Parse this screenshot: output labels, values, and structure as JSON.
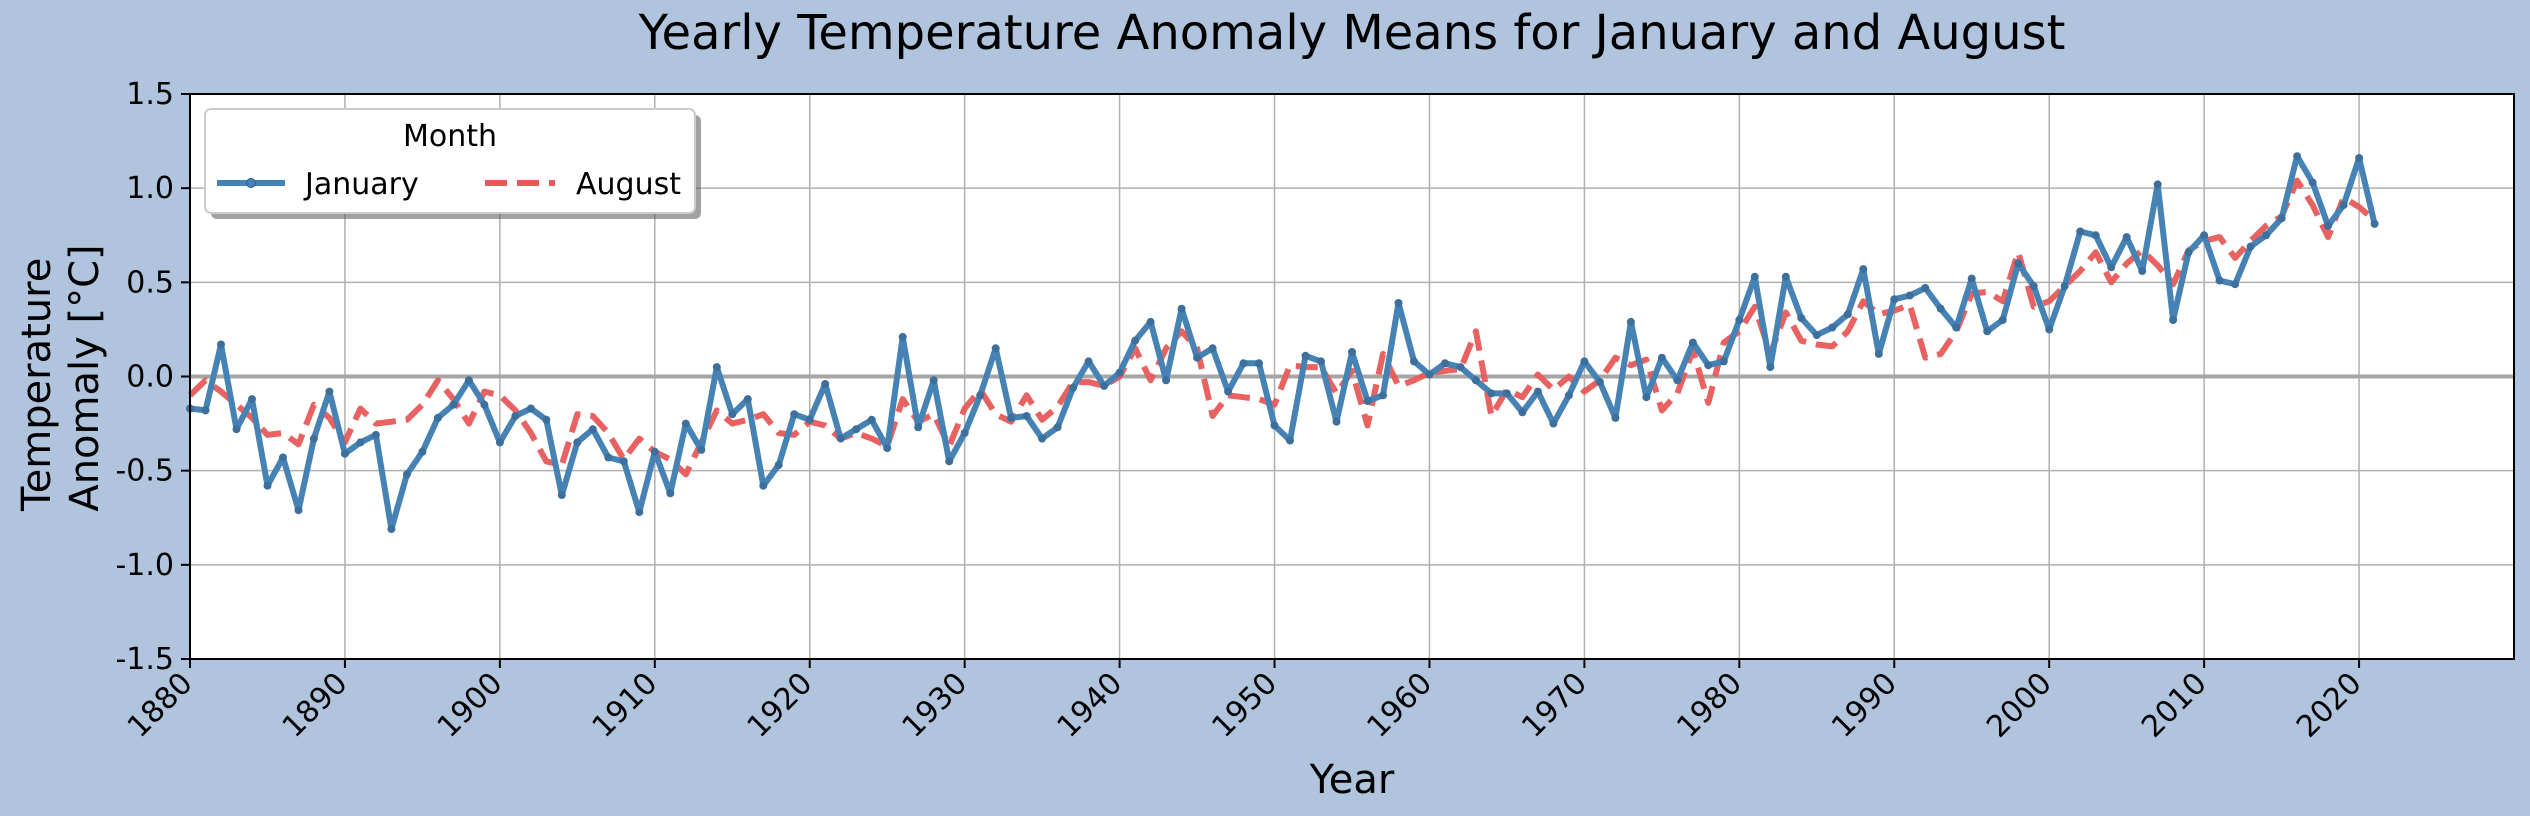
{
  "chart_data": {
    "type": "line",
    "title": "Yearly Temperature Anomaly Means for January and August",
    "xlabel": "Year",
    "ylabel_lines": [
      "Temperature",
      "Anomaly [°C]"
    ],
    "xlim": [
      1880,
      2030
    ],
    "ylim": [
      -1.5,
      1.5
    ],
    "xticks": [
      1880,
      1890,
      1900,
      1910,
      1920,
      1930,
      1940,
      1950,
      1960,
      1970,
      1980,
      1990,
      2000,
      2010,
      2020
    ],
    "yticks": [
      -1.5,
      -1.0,
      -0.5,
      0.0,
      0.5,
      1.0,
      1.5
    ],
    "ytick_labels": [
      "-1.5",
      "-1.0",
      "-0.5",
      "0.0",
      "0.5",
      "1.0",
      "1.5"
    ],
    "grid": true,
    "zero_line": true,
    "legend": {
      "title": "Month",
      "placement": "top-left",
      "columns": 2
    },
    "colors": {
      "figure_bg": "#b0c4de",
      "plot_bg": "#ffffff",
      "january": "#4682b4",
      "august": "#e85a5a",
      "grid": "#b0b0b0",
      "zero_line": "#a6a6a6"
    },
    "start_year": 1880,
    "series": [
      {
        "name": "January",
        "style": "solid-with-markers",
        "values": [
          -0.17,
          -0.18,
          0.17,
          -0.28,
          -0.12,
          -0.58,
          -0.43,
          -0.71,
          -0.33,
          -0.08,
          -0.41,
          -0.35,
          -0.31,
          -0.81,
          -0.52,
          -0.4,
          -0.22,
          -0.15,
          -0.02,
          -0.15,
          -0.35,
          -0.21,
          -0.17,
          -0.23,
          -0.63,
          -0.35,
          -0.28,
          -0.43,
          -0.45,
          -0.72,
          -0.4,
          -0.62,
          -0.25,
          -0.39,
          0.05,
          -0.2,
          -0.12,
          -0.58,
          -0.47,
          -0.2,
          -0.23,
          -0.04,
          -0.33,
          -0.28,
          -0.23,
          -0.38,
          0.21,
          -0.27,
          -0.02,
          -0.45,
          -0.3,
          -0.1,
          0.15,
          -0.22,
          -0.21,
          -0.33,
          -0.27,
          -0.06,
          0.08,
          -0.05,
          0.02,
          0.19,
          0.29,
          -0.02,
          0.36,
          0.1,
          0.15,
          -0.08,
          0.07,
          0.07,
          -0.26,
          -0.34,
          0.11,
          0.08,
          -0.24,
          0.13,
          -0.13,
          -0.1,
          0.39,
          0.08,
          0.01,
          0.07,
          0.05,
          -0.02,
          -0.09,
          -0.09,
          -0.19,
          -0.08,
          -0.25,
          -0.1,
          0.08,
          -0.03,
          -0.22,
          0.29,
          -0.11,
          0.1,
          -0.02,
          0.18,
          0.06,
          0.08,
          0.3,
          0.53,
          0.05,
          0.53,
          0.31,
          0.22,
          0.26,
          0.33,
          0.57,
          0.12,
          0.41,
          0.43,
          0.47,
          0.36,
          0.26,
          0.52,
          0.24,
          0.3,
          0.6,
          0.48,
          0.25,
          0.48,
          0.77,
          0.75,
          0.58,
          0.74,
          0.56,
          1.02,
          0.3,
          0.66,
          0.75,
          0.51,
          0.49,
          0.69,
          0.75,
          0.84,
          1.17,
          1.03,
          0.8,
          0.91,
          1.16,
          0.81
        ]
      },
      {
        "name": "August",
        "style": "dashed",
        "values": [
          -0.1,
          -0.02,
          -0.08,
          -0.15,
          -0.22,
          -0.31,
          -0.3,
          -0.36,
          -0.15,
          -0.22,
          -0.35,
          -0.17,
          -0.25,
          -0.24,
          -0.23,
          -0.15,
          -0.02,
          -0.12,
          -0.25,
          -0.08,
          -0.1,
          -0.18,
          -0.3,
          -0.45,
          -0.47,
          -0.2,
          -0.21,
          -0.3,
          -0.44,
          -0.33,
          -0.4,
          -0.44,
          -0.52,
          -0.35,
          -0.18,
          -0.25,
          -0.23,
          -0.2,
          -0.3,
          -0.31,
          -0.24,
          -0.26,
          -0.33,
          -0.3,
          -0.33,
          -0.37,
          -0.12,
          -0.24,
          -0.2,
          -0.37,
          -0.17,
          -0.07,
          -0.2,
          -0.24,
          -0.1,
          -0.23,
          -0.16,
          -0.03,
          -0.03,
          -0.05,
          0.0,
          0.15,
          -0.02,
          0.15,
          0.24,
          0.15,
          -0.21,
          -0.1,
          -0.11,
          -0.12,
          -0.15,
          0.06,
          0.05,
          0.05,
          -0.09,
          0.03,
          -0.26,
          0.12,
          -0.05,
          -0.02,
          0.02,
          0.03,
          0.04,
          0.24,
          -0.21,
          -0.07,
          -0.11,
          0.01,
          -0.07,
          0.0,
          -0.08,
          -0.02,
          0.1,
          0.06,
          0.09,
          -0.18,
          -0.09,
          0.14,
          -0.14,
          0.18,
          0.24,
          0.37,
          0.12,
          0.34,
          0.19,
          0.17,
          0.16,
          0.24,
          0.4,
          0.33,
          0.35,
          0.38,
          0.1,
          0.12,
          0.24,
          0.44,
          0.45,
          0.4,
          0.66,
          0.37,
          0.4,
          0.48,
          0.56,
          0.66,
          0.5,
          0.6,
          0.67,
          0.59,
          0.49,
          0.67,
          0.72,
          0.74,
          0.63,
          0.72,
          0.8,
          0.85,
          1.04,
          0.91,
          0.74,
          0.95,
          0.9,
          0.83
        ]
      }
    ]
  }
}
